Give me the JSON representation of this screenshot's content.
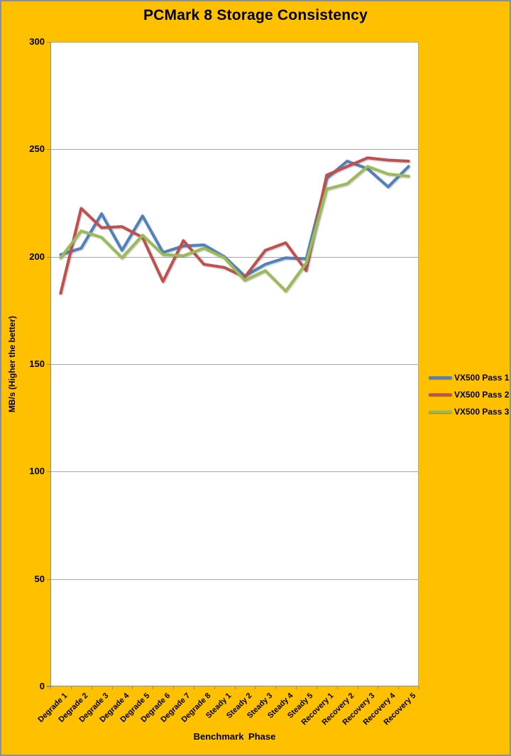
{
  "colors": {
    "background": "#FFC000",
    "plot_background": "#FFFFFF",
    "gridline": "#A6A6A6",
    "axis": "#8C8C8C",
    "plot_right_edge": "#ABABAB",
    "text": "#000000",
    "frame_border": "#8F9092"
  },
  "chart_data": {
    "type": "line",
    "title": "PCMark 8 Storage Consistency",
    "xlabel": "Benchmark Phase",
    "ylabel": "MB/s (Higher the better)",
    "ylim": [
      0,
      300
    ],
    "ytick_step": 50,
    "grid": true,
    "legend_position": "right",
    "categories": [
      "Degrade 1",
      "Degrade 2",
      "Degrade 3",
      "Degrade 4",
      "Degrade 5",
      "Degrade 6",
      "Degrade 7",
      "Degrade 8",
      "Steady 1",
      "Steady 2",
      "Steady 3",
      "Steady 4",
      "Steady 5",
      "Recovery 1",
      "Recovery 2",
      "Recovery 3",
      "Recovery 4",
      "Recovery 5"
    ],
    "series": [
      {
        "name": "VX500 Pass 1",
        "color": "#4F81BD",
        "values": [
          201,
          204,
          220,
          203,
          219,
          202,
          205,
          205.5,
          200,
          191,
          196.5,
          199.5,
          199,
          236.5,
          244.5,
          241,
          232.5,
          242
        ]
      },
      {
        "name": "VX500 Pass 2",
        "color": "#C0504D",
        "values": [
          183,
          222.5,
          213.5,
          214,
          209,
          188.5,
          207.5,
          196.5,
          195,
          190.5,
          203,
          206.5,
          193.5,
          238,
          242,
          246,
          245,
          244.5
        ]
      },
      {
        "name": "VX500 Pass 3",
        "color": "#9BBB59",
        "values": [
          199.5,
          212,
          209,
          199.5,
          210,
          201,
          200.5,
          204,
          199.5,
          189,
          193.5,
          184,
          197,
          231.5,
          234,
          242,
          238.5,
          237.5
        ]
      }
    ]
  }
}
